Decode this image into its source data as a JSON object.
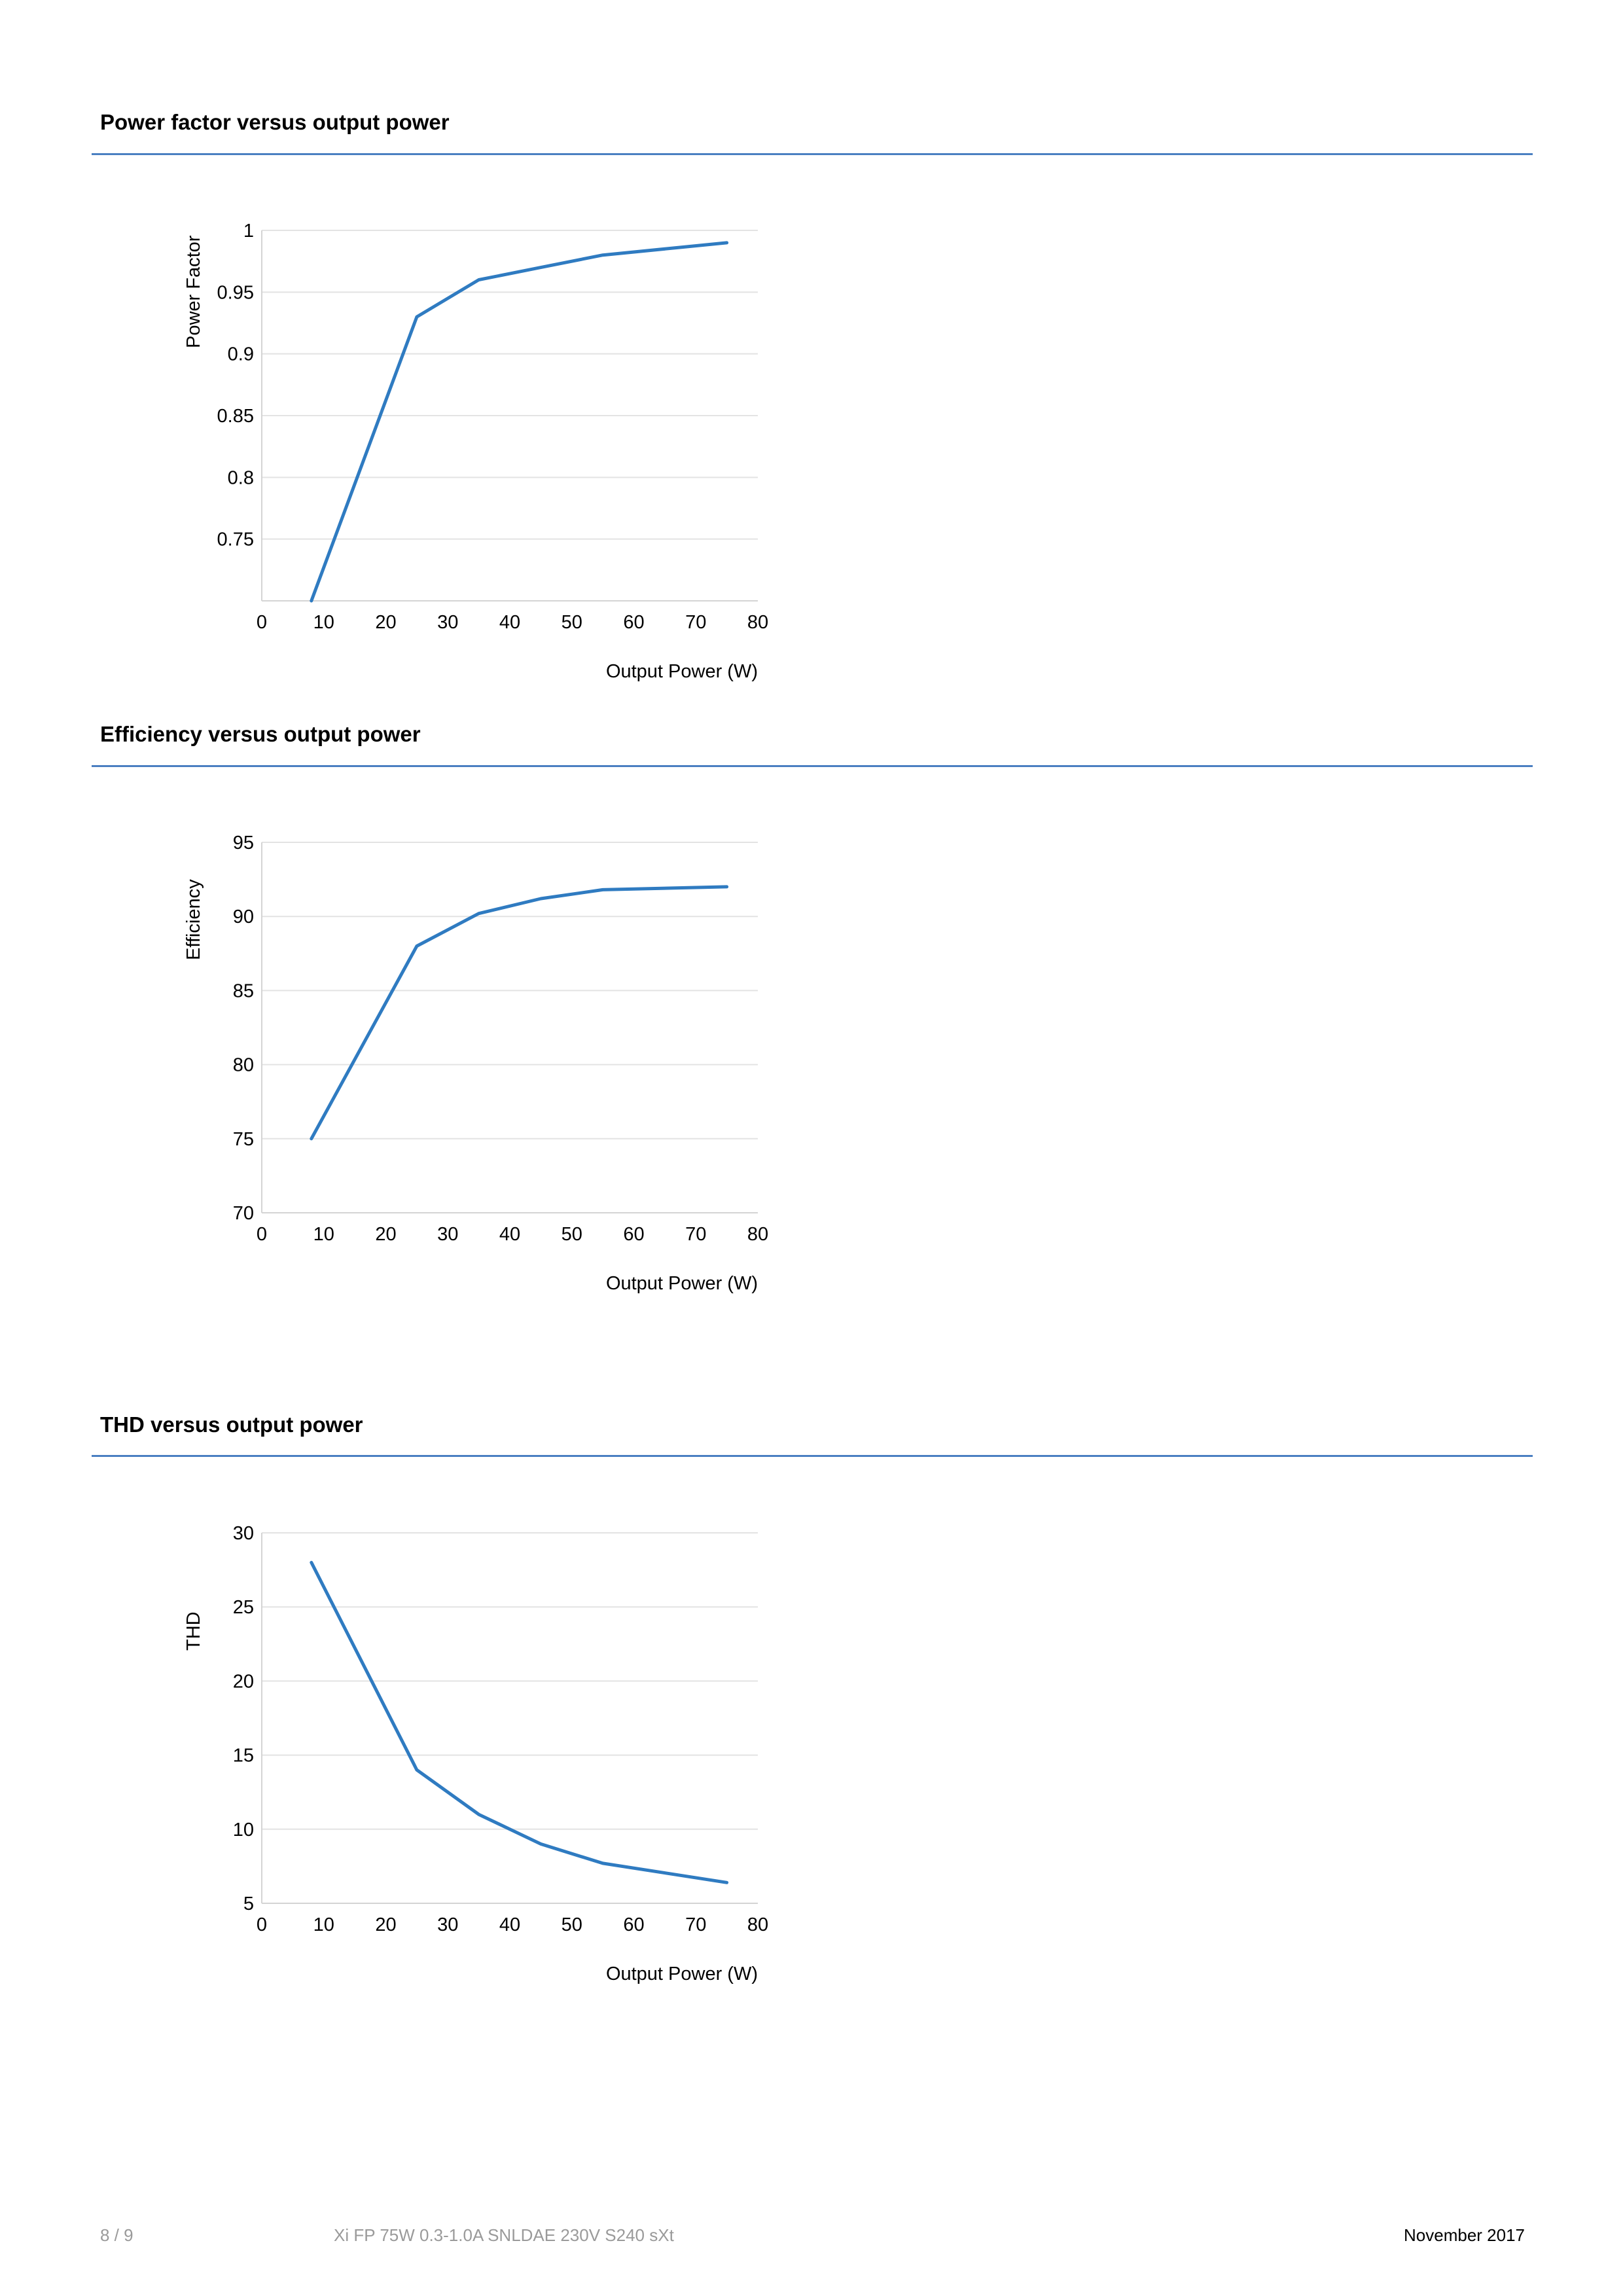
{
  "charts": [
    {
      "title": "Power factor versus output power",
      "chart_data": {
        "type": "line",
        "title": "Power factor versus output power",
        "xlabel": "Output Power (W)",
        "ylabel": "Power Factor",
        "xlim": [
          0,
          80
        ],
        "ylim": [
          0.7,
          1
        ],
        "xticks": [
          "0",
          "10",
          "20",
          "30",
          "40",
          "50",
          "60",
          "70",
          "80"
        ],
        "yticks": [
          {
            "value": 0.75,
            "label": "0.75"
          },
          {
            "value": 0.8,
            "label": "0.8"
          },
          {
            "value": 0.85,
            "label": "0.85"
          },
          {
            "value": 0.9,
            "label": "0.9"
          },
          {
            "value": 0.95,
            "label": "0.95"
          },
          {
            "value": 1,
            "label": "1"
          }
        ],
        "grid": true,
        "line_color": "#2f7bc1",
        "series": [
          {
            "x": [
              8,
              25,
              35,
              45,
              55,
              75
            ],
            "y": [
              0.7,
              0.93,
              0.96,
              0.97,
              0.98,
              0.99
            ]
          }
        ]
      }
    },
    {
      "title": "Efficiency versus output power",
      "chart_data": {
        "type": "line",
        "title": "Efficiency versus output power",
        "xlabel": "Output Power (W)",
        "ylabel": "Efficiency",
        "xlim": [
          0,
          80
        ],
        "ylim": [
          70,
          95
        ],
        "xticks": [
          "0",
          "10",
          "20",
          "30",
          "40",
          "50",
          "60",
          "70",
          "80"
        ],
        "yticks": [
          {
            "value": 70,
            "label": "70"
          },
          {
            "value": 75,
            "label": "75"
          },
          {
            "value": 80,
            "label": "80"
          },
          {
            "value": 85,
            "label": "85"
          },
          {
            "value": 90,
            "label": "90"
          },
          {
            "value": 95,
            "label": "95"
          }
        ],
        "grid": true,
        "line_color": "#2f7bc1",
        "series": [
          {
            "x": [
              8,
              25,
              35,
              45,
              55,
              75
            ],
            "y": [
              75,
              88,
              90.2,
              91.2,
              91.8,
              92
            ]
          }
        ]
      }
    },
    {
      "title": "THD versus output power",
      "chart_data": {
        "type": "line",
        "title": "THD versus output power",
        "xlabel": "Output Power (W)",
        "ylabel": "THD",
        "xlim": [
          0,
          80
        ],
        "ylim": [
          5,
          30
        ],
        "xticks": [
          "0",
          "10",
          "20",
          "30",
          "40",
          "50",
          "60",
          "70",
          "80"
        ],
        "yticks": [
          {
            "value": 5,
            "label": "5"
          },
          {
            "value": 10,
            "label": "10"
          },
          {
            "value": 15,
            "label": "15"
          },
          {
            "value": 20,
            "label": "20"
          },
          {
            "value": 25,
            "label": "25"
          },
          {
            "value": 30,
            "label": "30"
          }
        ],
        "grid": true,
        "line_color": "#2f7bc1",
        "series": [
          {
            "x": [
              8,
              25,
              35,
              45,
              55,
              75
            ],
            "y": [
              28,
              14,
              11,
              9,
              7.7,
              6.4
            ]
          }
        ]
      }
    }
  ],
  "footer": {
    "page": "8 / 9",
    "product": "Xi FP 75W 0.3-1.0A SNLDAE 230V S240 sXt",
    "date": "November 2017"
  },
  "colors": {
    "accent_rule": "#4a7fc1",
    "series_line": "#2f7bc1",
    "gridline": "#e3e3e3"
  }
}
